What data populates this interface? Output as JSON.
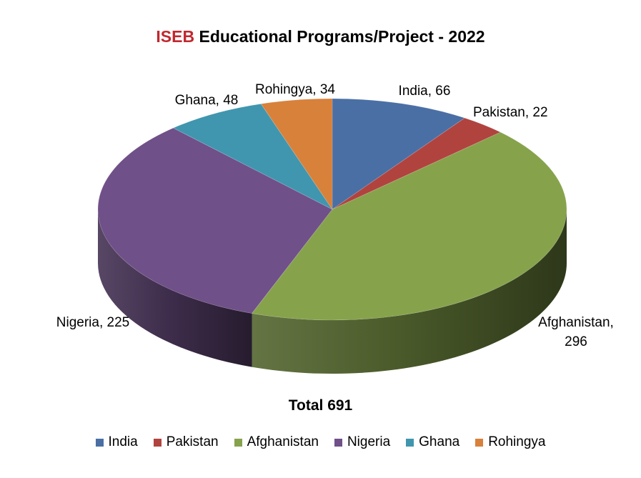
{
  "title": {
    "brand": "ISEB",
    "rest": " Educational Programs/Project - 2022"
  },
  "total_label": "Total 691",
  "chart_data": {
    "type": "pie",
    "title": "ISEB Educational Programs/Project - 2022",
    "categories": [
      "India",
      "Pakistan",
      "Afghanistan",
      "Nigeria",
      "Ghana",
      "Rohingya"
    ],
    "values": [
      66,
      22,
      296,
      225,
      48,
      34
    ],
    "labels": [
      "India, 66",
      "Pakistan, 22",
      "Afghanistan, 296",
      "Nigeria, 225",
      "Ghana, 48",
      "Rohingya, 34"
    ],
    "colors": [
      "#4a6fa5",
      "#b1433f",
      "#86a34c",
      "#705088",
      "#4096ae",
      "#d8813b"
    ],
    "style": "3d-pie",
    "legend_position": "bottom"
  }
}
